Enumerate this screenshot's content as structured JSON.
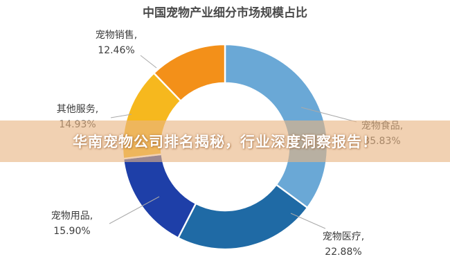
{
  "chart_data": {
    "type": "pie",
    "title": "中国宠物产业细分市场规模占比",
    "donut": true,
    "slices": [
      {
        "name": "宠物食品",
        "value": 35.83,
        "label": "35.83%",
        "color": "#6aa8d6"
      },
      {
        "name": "宠物医疗",
        "value": 22.88,
        "label": "22.88%",
        "color": "#1f6aa5"
      },
      {
        "name": "宠物用品",
        "value": 15.9,
        "label": "15.90%",
        "color": "#1e3fa8"
      },
      {
        "name": "其他服务",
        "value": 14.93,
        "label": "14.93%",
        "color": "#f6b81e"
      },
      {
        "name": "宠物销售",
        "value": 12.46,
        "label": "12.46%",
        "color": "#f39019"
      }
    ],
    "legend": "none"
  },
  "banner": {
    "text": "华南宠物公司排名揭秘，行业深度洞察报告！"
  }
}
